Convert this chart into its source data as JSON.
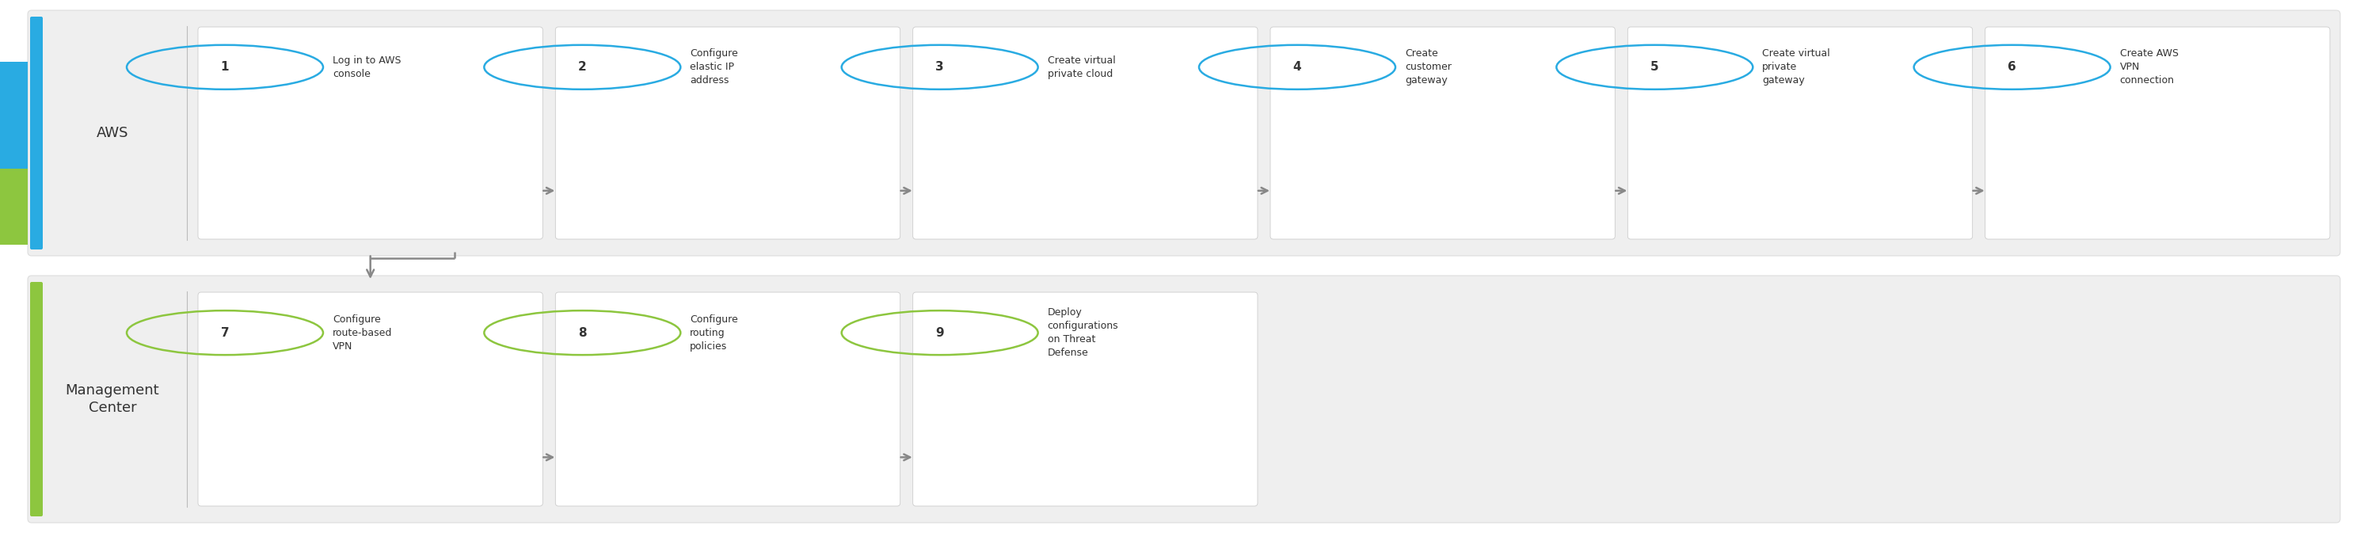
{
  "fig_width": 29.8,
  "fig_height": 6.73,
  "bg_color": "#ffffff",
  "row1": {
    "label": "AWS",
    "bar_color": "#29abe2",
    "circle_color": "#29abe2",
    "steps": [
      {
        "num": "1",
        "text": "Log in to AWS\nconsole"
      },
      {
        "num": "2",
        "text": "Configure\nelastic IP\naddress"
      },
      {
        "num": "3",
        "text": "Create virtual\nprivate cloud"
      },
      {
        "num": "4",
        "text": "Create\ncustomer\ngateway"
      },
      {
        "num": "5",
        "text": "Create virtual\nprivate\ngateway"
      },
      {
        "num": "6",
        "text": "Create AWS\nVPN\nconnection"
      }
    ]
  },
  "row2": {
    "label": "Management\nCenter",
    "bar_color": "#8dc63f",
    "circle_color": "#8dc63f",
    "steps": [
      {
        "num": "7",
        "text": "Configure\nroute-based\nVPN"
      },
      {
        "num": "8",
        "text": "Configure\nrouting\npolicies"
      },
      {
        "num": "9",
        "text": "Deploy\nconfigurations\non Threat\nDefense"
      }
    ]
  },
  "text_color": "#333333",
  "label_color": "#333333",
  "arrow_color": "#888888",
  "box_bg": "#efefef",
  "step_bg": "#ffffff",
  "step_edge": "#cccccc",
  "divider_color": "#bbbbbb"
}
